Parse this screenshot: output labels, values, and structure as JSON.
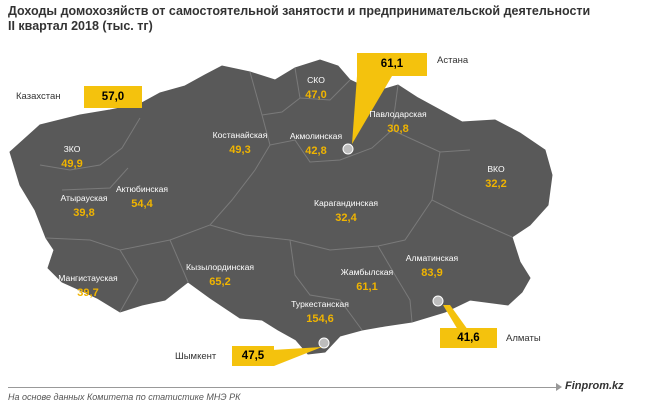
{
  "title": {
    "line1": "Доходы домохозяйств от самостоятельной занятости и предпринимательской деятельности",
    "line2": "II квартал 2018 (тыс. тг)"
  },
  "colors": {
    "map_fill": "#595959",
    "border": "#7a7a7a",
    "value": "#f0b400",
    "callout": "#f4c20d"
  },
  "kazakhstan": {
    "label": "Казахстан",
    "value": "57,0"
  },
  "regions": [
    {
      "name": "СКО",
      "value": "47,0"
    },
    {
      "name": "Костанайская",
      "value": "49,3"
    },
    {
      "name": "Акмолинская",
      "value": "42,8"
    },
    {
      "name": "Павлодарская",
      "value": "30,8"
    },
    {
      "name": "ЗКО",
      "value": "49,9"
    },
    {
      "name": "Атырауская",
      "value": "39,8"
    },
    {
      "name": "Актюбинская",
      "value": "54,4"
    },
    {
      "name": "ВКО",
      "value": "32,2"
    },
    {
      "name": "Карагандинская",
      "value": "32,4"
    },
    {
      "name": "Мангистауская",
      "value": "39,7"
    },
    {
      "name": "Кызылординская",
      "value": "65,2"
    },
    {
      "name": "Жамбылская",
      "value": "61,1"
    },
    {
      "name": "Алматинская",
      "value": "83,9"
    },
    {
      "name": "Туркестанская",
      "value": "154,6"
    }
  ],
  "cities": [
    {
      "name": "Астана",
      "value": "61,1"
    },
    {
      "name": "Алматы",
      "value": "41,6"
    },
    {
      "name": "Шымкент",
      "value": "47,5"
    }
  ],
  "footer": {
    "source": "На основе данных Комитета по статистике МНЭ РК",
    "brand": "Finprom.kz"
  }
}
